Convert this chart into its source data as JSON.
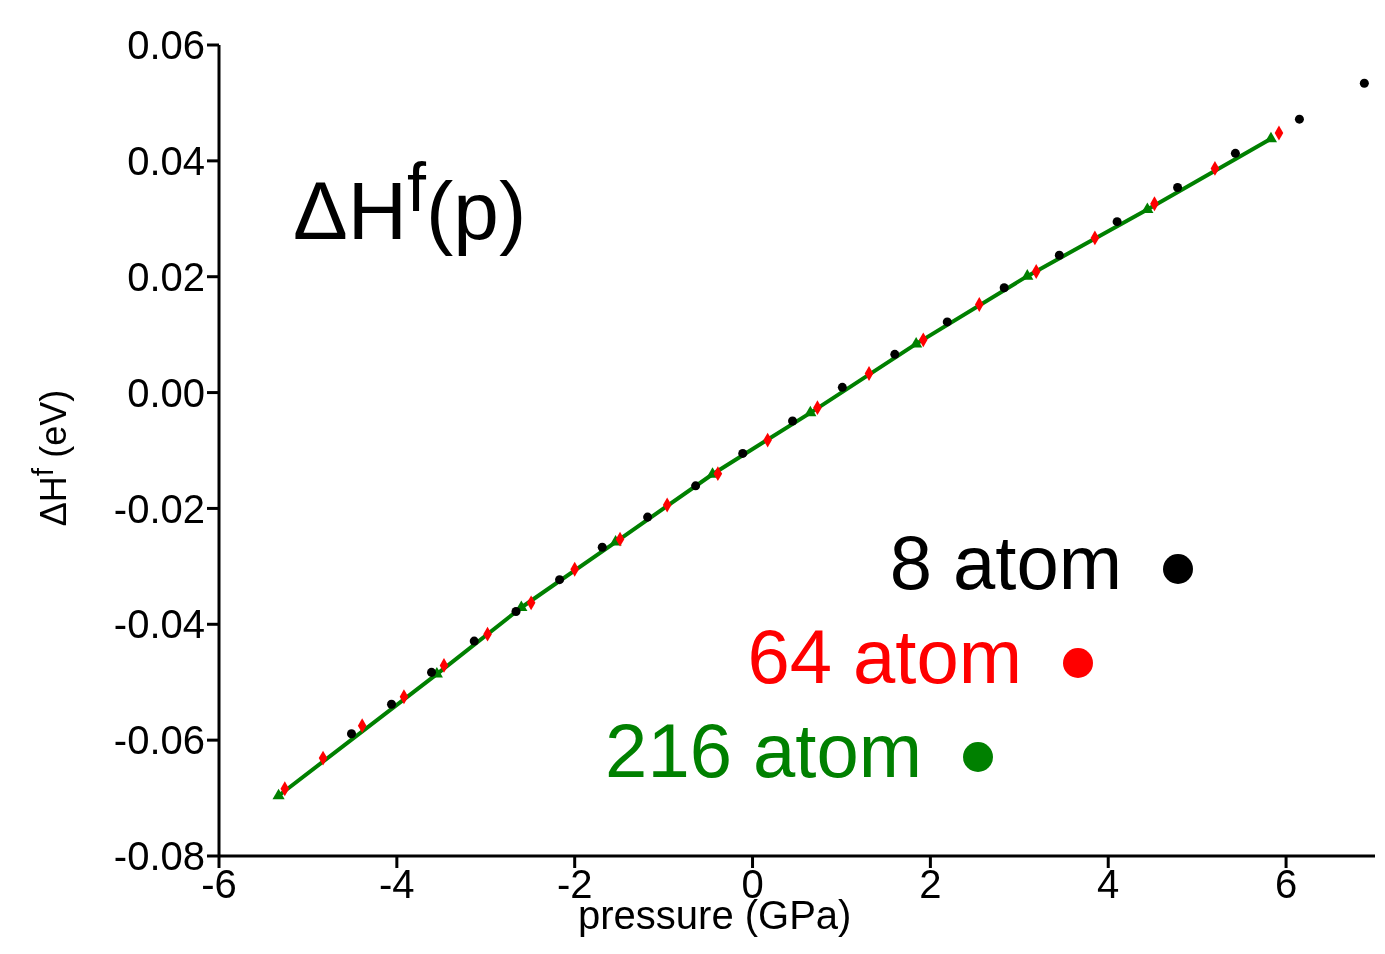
{
  "chart_data": {
    "type": "scatter",
    "title": "ΔH$^{f}$(p)",
    "xlabel": "pressure (GPa)",
    "ylabel": "ΔH$^{f}$ (eV)",
    "xlim": [
      -6,
      7
    ],
    "xticks": [
      -6,
      -4,
      -2,
      0,
      2,
      4,
      6
    ],
    "ylim": [
      -0.08,
      0.06
    ],
    "yticks": [
      {
        "value": -0.08,
        "label": "-0.08"
      },
      {
        "value": -0.06,
        "label": "-0.06"
      },
      {
        "value": -0.04,
        "label": "-0.04"
      },
      {
        "value": -0.02,
        "label": "-0.02"
      },
      {
        "value": 0,
        "label": "0.00"
      },
      {
        "value": 0.02,
        "label": "0.02"
      },
      {
        "value": 0.04,
        "label": "0.04"
      },
      {
        "value": 0.06,
        "label": "0.06"
      }
    ],
    "legend": "bottom right",
    "series": [
      {
        "name": "8 atom",
        "color": "#000000",
        "marker": "circle",
        "x": [
          -4.51,
          -4.06,
          -3.61,
          -3.13,
          -2.66,
          -2.17,
          -1.69,
          -1.18,
          -0.64,
          -0.11,
          0.45,
          1.01,
          1.6,
          2.19,
          2.83,
          3.45,
          4.1,
          4.78,
          5.43,
          6.15,
          6.88
        ],
        "values": [
          -0.0589,
          -0.0538,
          -0.0483,
          -0.0429,
          -0.0378,
          -0.0323,
          -0.0267,
          -0.0215,
          -0.0161,
          -0.0105,
          -0.0049,
          0.0009,
          0.0066,
          0.0122,
          0.0181,
          0.0237,
          0.0295,
          0.0354,
          0.0413,
          0.0472,
          0.0534
        ]
      },
      {
        "name": "64 atom",
        "color": "#ff0000",
        "marker": "diamond",
        "x": [
          -5.26,
          -4.83,
          -4.39,
          -3.92,
          -3.47,
          -2.98,
          -2.49,
          -2.0,
          -1.49,
          -0.96,
          -0.39,
          0.17,
          0.73,
          1.31,
          1.92,
          2.55,
          3.19,
          3.85,
          4.52,
          5.2,
          5.92
        ],
        "values": [
          -0.0684,
          -0.0631,
          -0.0575,
          -0.0525,
          -0.0471,
          -0.0417,
          -0.0363,
          -0.0305,
          -0.0253,
          -0.0194,
          -0.014,
          -0.0082,
          -0.0026,
          0.0033,
          0.0091,
          0.0152,
          0.0209,
          0.0267,
          0.0326,
          0.0387,
          0.0448
        ]
      },
      {
        "name": "216 atom",
        "type": "line",
        "color": "#008000",
        "marker": "triangle",
        "line_style": "solid",
        "x": [
          -5.33,
          -3.55,
          -2.6,
          -1.54,
          -0.45,
          0.65,
          1.84,
          3.09,
          4.44,
          5.83
        ],
        "values": [
          -0.0696,
          -0.0486,
          -0.0371,
          -0.0258,
          -0.0141,
          -0.0035,
          0.0084,
          0.0201,
          0.0316,
          0.0438
        ]
      }
    ]
  }
}
